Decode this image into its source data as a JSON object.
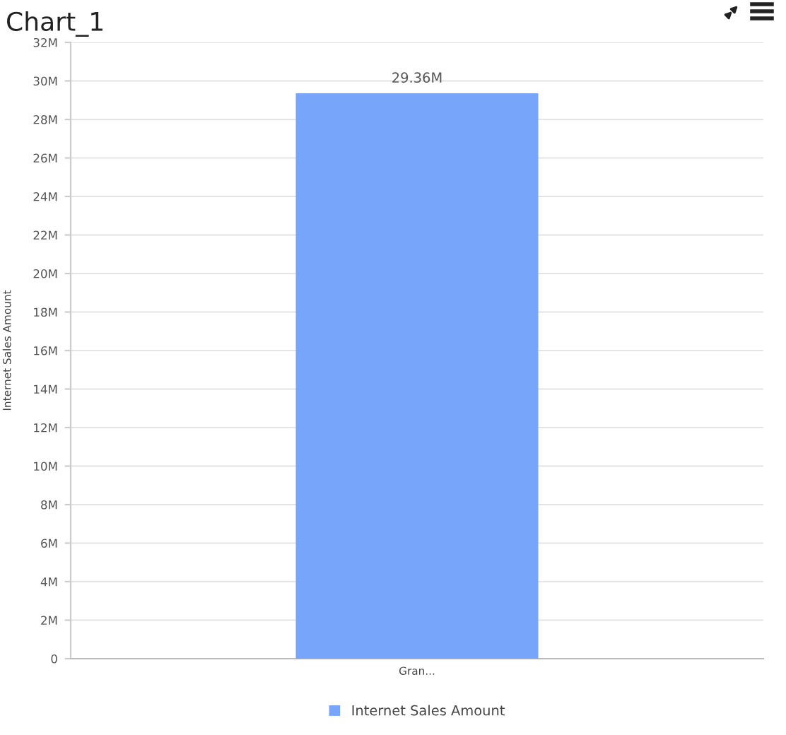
{
  "chart_data": {
    "type": "bar",
    "title": "Chart_1",
    "ylabel": "Internet Sales Amount",
    "categories": [
      "Gran..."
    ],
    "series": [
      {
        "name": "Internet Sales Amount",
        "color": "#76a5fa",
        "values": [
          29.36
        ],
        "value_labels": [
          "29.36M"
        ]
      }
    ],
    "ylim": [
      0,
      32
    ],
    "yticks": [
      0,
      {
        "value": 2,
        "label": "2M"
      },
      {
        "value": 4,
        "label": "4M"
      },
      {
        "value": 6,
        "label": "6M"
      },
      {
        "value": 8,
        "label": "8M"
      },
      {
        "value": 10,
        "label": "10M"
      },
      {
        "value": 12,
        "label": "12M"
      },
      {
        "value": 14,
        "label": "14M"
      },
      {
        "value": 16,
        "label": "16M"
      },
      {
        "value": 18,
        "label": "18M"
      },
      {
        "value": 20,
        "label": "20M"
      },
      {
        "value": 22,
        "label": "22M"
      },
      {
        "value": 24,
        "label": "24M"
      },
      {
        "value": 26,
        "label": "26M"
      },
      {
        "value": 28,
        "label": "28M"
      },
      {
        "value": 30,
        "label": "30M"
      },
      {
        "value": 32,
        "label": "32M"
      }
    ],
    "grid": "y",
    "legend": "bottom"
  }
}
